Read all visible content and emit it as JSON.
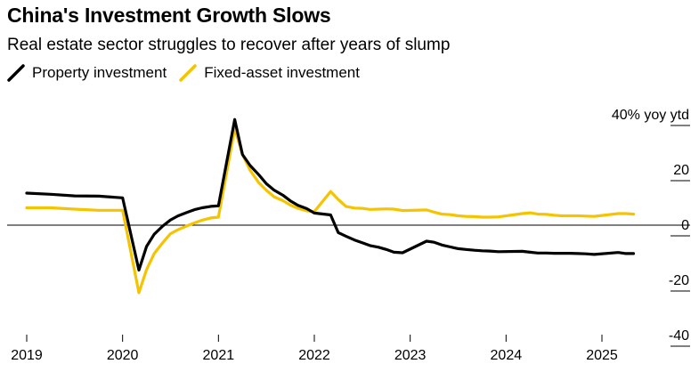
{
  "title": "China's Investment Growth Slows",
  "subtitle": "Real estate sector struggles to recover after years of slump",
  "legend": [
    {
      "name": "Property investment",
      "color": "#000000"
    },
    {
      "name": "Fixed-asset investment",
      "color": "#f5c400"
    }
  ],
  "chart_data": {
    "type": "line",
    "title": "China's Investment Growth Slows",
    "subtitle": "Real estate sector struggles to recover after years of slump",
    "xlabel": "",
    "ylabel": "40% yoy ytd",
    "unit_label": "40% yoy ytd",
    "ylim": [
      -44,
      44
    ],
    "xlim": [
      2018.92,
      2025.92
    ],
    "y_ticks": [
      {
        "value": 40,
        "label": "40% yoy ytd"
      },
      {
        "value": 20,
        "label": "20"
      },
      {
        "value": 0,
        "label": "0"
      },
      {
        "value": -20,
        "label": "-20"
      },
      {
        "value": -40,
        "label": "-40"
      }
    ],
    "x_ticks": [
      {
        "value": 2019,
        "label": "2019"
      },
      {
        "value": 2020,
        "label": "2020"
      },
      {
        "value": 2021,
        "label": "2021"
      },
      {
        "value": 2022,
        "label": "2022"
      },
      {
        "value": 2023,
        "label": "2023"
      },
      {
        "value": 2024,
        "label": "2024"
      },
      {
        "value": 2025,
        "label": "2025"
      }
    ],
    "grid": false,
    "legend_position": "top-left",
    "series": [
      {
        "name": "Property investment",
        "color": "#000000",
        "points": [
          [
            2019.0,
            11.6
          ],
          [
            2019.25,
            11.2
          ],
          [
            2019.5,
            10.6
          ],
          [
            2019.75,
            10.5
          ],
          [
            2020.0,
            9.9
          ],
          [
            2020.17,
            -16.3
          ],
          [
            2020.25,
            -7.7
          ],
          [
            2020.33,
            -3.3
          ],
          [
            2020.42,
            -0.3
          ],
          [
            2020.5,
            1.9
          ],
          [
            2020.58,
            3.4
          ],
          [
            2020.67,
            4.6
          ],
          [
            2020.75,
            5.6
          ],
          [
            2020.83,
            6.3
          ],
          [
            2020.92,
            6.8
          ],
          [
            2021.0,
            7.0
          ],
          [
            2021.17,
            38.3
          ],
          [
            2021.25,
            25.6
          ],
          [
            2021.33,
            21.6
          ],
          [
            2021.42,
            18.3
          ],
          [
            2021.5,
            15.0
          ],
          [
            2021.58,
            12.7
          ],
          [
            2021.67,
            10.9
          ],
          [
            2021.75,
            8.8
          ],
          [
            2021.83,
            7.2
          ],
          [
            2021.92,
            6.0
          ],
          [
            2022.0,
            4.4
          ],
          [
            2022.17,
            3.7
          ],
          [
            2022.25,
            -2.7
          ],
          [
            2022.33,
            -4.0
          ],
          [
            2022.42,
            -5.4
          ],
          [
            2022.5,
            -6.4
          ],
          [
            2022.58,
            -7.4
          ],
          [
            2022.67,
            -8.0
          ],
          [
            2022.75,
            -8.8
          ],
          [
            2022.83,
            -9.8
          ],
          [
            2022.92,
            -10.0
          ],
          [
            2023.17,
            -5.8
          ],
          [
            2023.25,
            -6.2
          ],
          [
            2023.33,
            -7.2
          ],
          [
            2023.42,
            -7.9
          ],
          [
            2023.5,
            -8.5
          ],
          [
            2023.58,
            -8.8
          ],
          [
            2023.67,
            -9.1
          ],
          [
            2023.75,
            -9.3
          ],
          [
            2023.83,
            -9.4
          ],
          [
            2023.92,
            -9.6
          ],
          [
            2024.17,
            -9.5
          ],
          [
            2024.25,
            -9.8
          ],
          [
            2024.33,
            -10.1
          ],
          [
            2024.42,
            -10.1
          ],
          [
            2024.5,
            -10.2
          ],
          [
            2024.58,
            -10.2
          ],
          [
            2024.67,
            -10.2
          ],
          [
            2024.75,
            -10.3
          ],
          [
            2024.83,
            -10.4
          ],
          [
            2024.92,
            -10.6
          ],
          [
            2025.17,
            -9.9
          ],
          [
            2025.25,
            -10.3
          ],
          [
            2025.33,
            -10.3
          ]
        ]
      },
      {
        "name": "Fixed-asset investment",
        "color": "#f5c400",
        "points": [
          [
            2019.0,
            6.3
          ],
          [
            2019.25,
            6.3
          ],
          [
            2019.5,
            5.8
          ],
          [
            2019.75,
            5.4
          ],
          [
            2020.0,
            5.4
          ],
          [
            2020.17,
            -24.5
          ],
          [
            2020.25,
            -16.1
          ],
          [
            2020.33,
            -10.3
          ],
          [
            2020.42,
            -6.3
          ],
          [
            2020.5,
            -3.1
          ],
          [
            2020.58,
            -1.6
          ],
          [
            2020.67,
            -0.3
          ],
          [
            2020.75,
            0.8
          ],
          [
            2020.83,
            1.8
          ],
          [
            2020.92,
            2.6
          ],
          [
            2021.0,
            2.9
          ],
          [
            2021.17,
            35.0
          ],
          [
            2021.25,
            25.6
          ],
          [
            2021.33,
            19.9
          ],
          [
            2021.42,
            15.4
          ],
          [
            2021.5,
            12.6
          ],
          [
            2021.58,
            10.3
          ],
          [
            2021.67,
            8.9
          ],
          [
            2021.75,
            7.3
          ],
          [
            2021.83,
            6.1
          ],
          [
            2021.92,
            5.2
          ],
          [
            2022.0,
            4.9
          ],
          [
            2022.17,
            12.2
          ],
          [
            2022.25,
            9.3
          ],
          [
            2022.33,
            6.8
          ],
          [
            2022.42,
            6.2
          ],
          [
            2022.5,
            6.1
          ],
          [
            2022.58,
            5.7
          ],
          [
            2022.67,
            5.8
          ],
          [
            2022.75,
            5.9
          ],
          [
            2022.83,
            5.8
          ],
          [
            2022.92,
            5.3
          ],
          [
            2023.17,
            5.5
          ],
          [
            2023.25,
            4.7
          ],
          [
            2023.33,
            4.0
          ],
          [
            2023.42,
            3.8
          ],
          [
            2023.5,
            3.4
          ],
          [
            2023.58,
            3.2
          ],
          [
            2023.67,
            3.1
          ],
          [
            2023.75,
            2.9
          ],
          [
            2023.83,
            2.9
          ],
          [
            2023.92,
            3.0
          ],
          [
            2024.17,
            4.2
          ],
          [
            2024.25,
            4.5
          ],
          [
            2024.33,
            4.0
          ],
          [
            2024.42,
            3.9
          ],
          [
            2024.5,
            3.6
          ],
          [
            2024.58,
            3.4
          ],
          [
            2024.67,
            3.4
          ],
          [
            2024.75,
            3.4
          ],
          [
            2024.83,
            3.3
          ],
          [
            2024.92,
            3.2
          ],
          [
            2025.17,
            4.2
          ],
          [
            2025.25,
            4.2
          ],
          [
            2025.33,
            4.0
          ]
        ]
      }
    ]
  }
}
